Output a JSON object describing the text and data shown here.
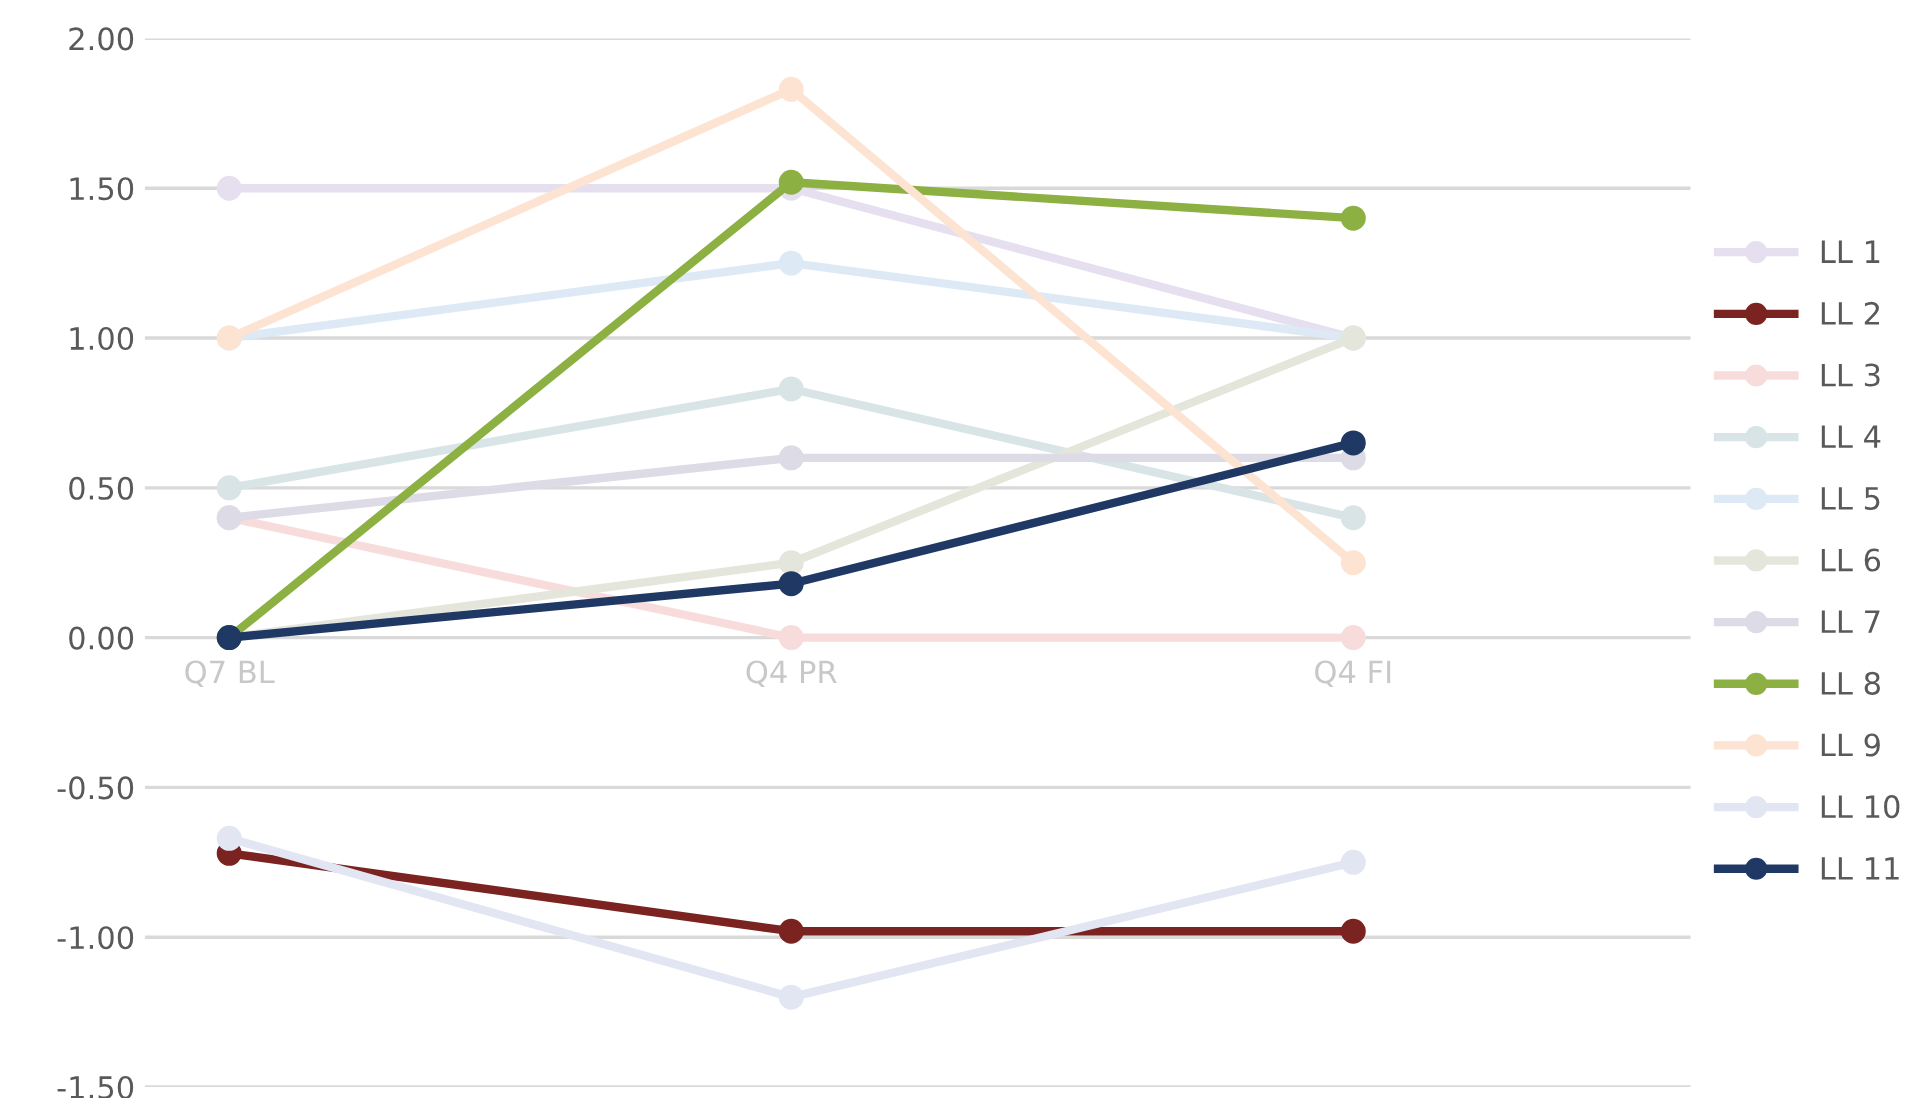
{
  "chart_data": {
    "type": "line",
    "categories": [
      "Q7 BL",
      "Q4 PR",
      "Q4 FI"
    ],
    "series": [
      {
        "name": "LL 1",
        "color": "#e6dff0",
        "values": [
          1.5,
          1.5,
          1.0
        ]
      },
      {
        "name": "LL 2",
        "color": "#7b2320",
        "values": [
          -0.72,
          -0.98,
          -0.98
        ]
      },
      {
        "name": "LL 3",
        "color": "#f8dcdc",
        "values": [
          0.4,
          0.0,
          0.0
        ]
      },
      {
        "name": "LL 4",
        "color": "#d8e4e6",
        "values": [
          0.5,
          0.83,
          0.4
        ]
      },
      {
        "name": "LL 5",
        "color": "#dde9f5",
        "values": [
          1.0,
          1.25,
          1.0
        ]
      },
      {
        "name": "LL 6",
        "color": "#e4e6dc",
        "values": [
          0.0,
          0.25,
          1.0
        ]
      },
      {
        "name": "LL 7",
        "color": "#dcdbe6",
        "values": [
          0.4,
          0.6,
          0.6
        ]
      },
      {
        "name": "LL 8",
        "color": "#8db043",
        "values": [
          0.0,
          1.52,
          1.4
        ]
      },
      {
        "name": "LL 9",
        "color": "#fde3d2",
        "values": [
          1.0,
          1.83,
          0.25
        ]
      },
      {
        "name": "LL 10",
        "color": "#e2e6f3",
        "values": [
          -0.67,
          -1.2,
          -0.75
        ]
      },
      {
        "name": "LL 11",
        "color": "#1f3864",
        "values": [
          0.0,
          0.18,
          0.65
        ]
      }
    ],
    "ylim": [
      -1.5,
      2.0
    ],
    "yticks": [
      {
        "value": -1.5,
        "label": "-1.50"
      },
      {
        "value": -1.0,
        "label": "-1.00"
      },
      {
        "value": -0.5,
        "label": "-0.50"
      },
      {
        "value": 0,
        "label": "0.00"
      },
      {
        "value": 0.5,
        "label": "0.50"
      },
      {
        "value": 1.0,
        "label": "1.00"
      },
      {
        "value": 1.5,
        "label": "1.50"
      },
      {
        "value": 2.0,
        "label": "2.00"
      }
    ],
    "grid": "y",
    "legend": "right",
    "marker": "circle",
    "line_style": "solid"
  }
}
